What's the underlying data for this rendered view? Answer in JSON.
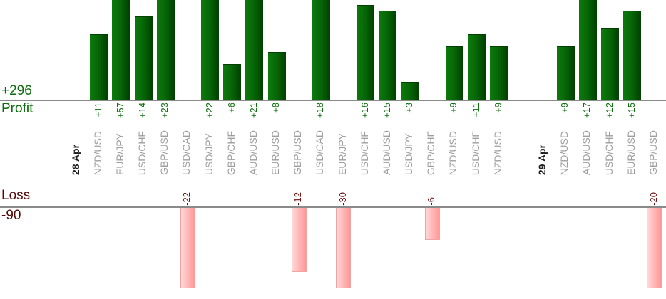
{
  "chart_data": {
    "type": "bar",
    "orientation": "vertical",
    "legend_position": "none",
    "grid": "horizontal-faint",
    "gridline_values": [
      10,
      -10
    ],
    "panes": [
      {
        "name": "profit",
        "side": "top",
        "axis_title": "Profit",
        "total_label": "+296",
        "total": 296
      },
      {
        "name": "loss",
        "side": "bottom",
        "axis_title": "Loss",
        "total_label": "-90",
        "total": -90
      }
    ],
    "value_label_format": "signed",
    "columns": [
      {
        "type": "date",
        "label": "28 Apr"
      },
      {
        "type": "data",
        "label": "NZD/USD",
        "value": 11
      },
      {
        "type": "data",
        "label": "EUR/JPY",
        "value": 57
      },
      {
        "type": "data",
        "label": "USD/CHF",
        "value": 14
      },
      {
        "type": "data",
        "label": "GBP/USD",
        "value": 23
      },
      {
        "type": "data",
        "label": "USD/CAD",
        "value": -22
      },
      {
        "type": "data",
        "label": "USD/JPY",
        "value": 22
      },
      {
        "type": "data",
        "label": "GBP/CHF",
        "value": 6
      },
      {
        "type": "data",
        "label": "AUD/USD",
        "value": 21
      },
      {
        "type": "data",
        "label": "EUR/USD",
        "value": 8
      },
      {
        "type": "data",
        "label": "GBP/USD",
        "value": -12
      },
      {
        "type": "data",
        "label": "USD/CAD",
        "value": 18
      },
      {
        "type": "data",
        "label": "EUR/JPY",
        "value": -30
      },
      {
        "type": "data",
        "label": "USD/CHF",
        "value": 16
      },
      {
        "type": "data",
        "label": "AUD/USD",
        "value": 15
      },
      {
        "type": "data",
        "label": "USD/JPY",
        "value": 3
      },
      {
        "type": "data",
        "label": "GBP/CHF",
        "value": -6
      },
      {
        "type": "data",
        "label": "NZD/USD",
        "value": 9
      },
      {
        "type": "data",
        "label": "USD/CHF",
        "value": 11
      },
      {
        "type": "data",
        "label": "NZD/USD",
        "value": 9
      },
      {
        "type": "spacer",
        "label": ""
      },
      {
        "type": "date",
        "label": "29 Apr"
      },
      {
        "type": "data",
        "label": "NZD/USD",
        "value": 9
      },
      {
        "type": "data",
        "label": "AUD/USD",
        "value": 17
      },
      {
        "type": "data",
        "label": "USD/CHF",
        "value": 12
      },
      {
        "type": "data",
        "label": "EUR/USD",
        "value": 15
      },
      {
        "type": "data",
        "label": "GBP/USD",
        "value": -20
      }
    ],
    "colors": {
      "profit_bar_light": "#0d7a0d",
      "profit_bar_dark": "#004000",
      "profit_text": "#0a6e0a",
      "loss_bar_light": "#ffd9d9",
      "loss_bar_dark": "#ff9898",
      "loss_bar_border": "#f0a3a3",
      "loss_value_text": "#6b0f0f",
      "loss_title_text": "#520808",
      "category_text": "#9e9e9e",
      "date_text": "#1f1f1f",
      "axis_line": "#8a8a8a",
      "gridline": "#ececec"
    }
  }
}
